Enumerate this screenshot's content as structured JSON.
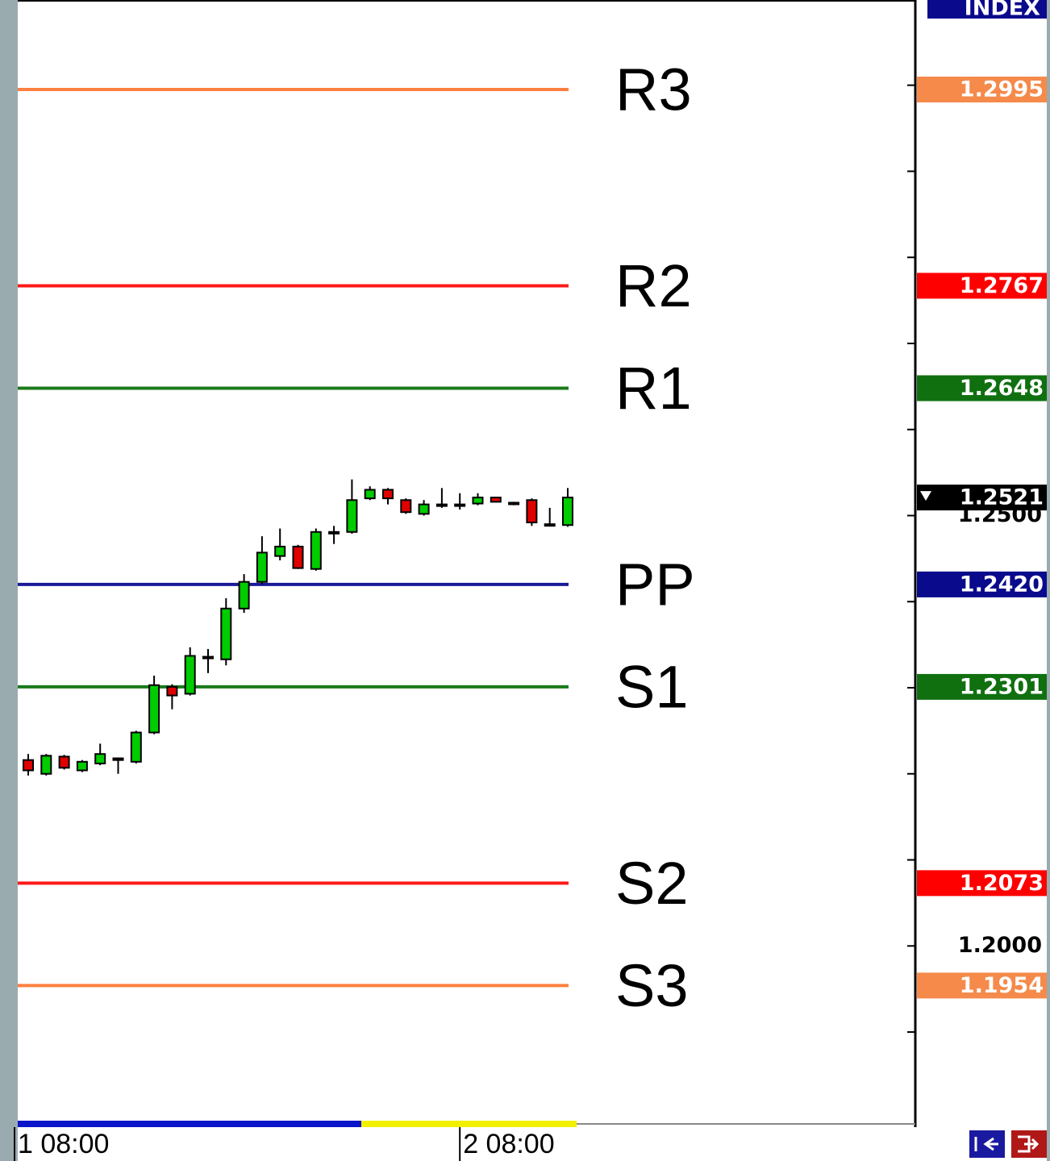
{
  "chart_data": {
    "type": "candlestick",
    "badge": "INDEX",
    "ylim": [
      1.1797,
      1.3099
    ],
    "yticks": [
      {
        "value": 1.2,
        "label": "1.2000"
      },
      {
        "value": 1.25,
        "label": "1.2500"
      }
    ],
    "yminor_ticks": [
      1.19,
      1.21,
      1.22,
      1.23,
      1.24,
      1.26,
      1.27,
      1.28,
      1.29,
      1.3
    ],
    "categories": [
      "1 08:00",
      null,
      null,
      null,
      null,
      null,
      null,
      null,
      null,
      null,
      null,
      null,
      null,
      null,
      null,
      null,
      null,
      null,
      null,
      null,
      null,
      null,
      null,
      null,
      "2 08:00",
      null,
      null,
      null,
      null,
      null,
      null
    ],
    "up_color": "#00cc00",
    "down_color": "#e00000",
    "open": [
      1.2216,
      1.22,
      1.222,
      1.2204,
      1.2212,
      1.2218,
      1.2214,
      1.2248,
      1.2301,
      1.2293,
      1.2335,
      1.2333,
      1.2392,
      1.2423,
      1.2453,
      1.2464,
      1.2438,
      1.248,
      1.2481,
      1.252,
      1.253,
      1.2518,
      1.2502,
      1.2512,
      1.2513,
      1.2514,
      1.2521,
      1.2514,
      1.2518,
      1.249,
      1.2489
    ],
    "high": [
      1.2223,
      1.2223,
      1.2222,
      1.2216,
      1.2235,
      1.2219,
      1.225,
      1.2314,
      1.2304,
      1.2347,
      1.2345,
      1.2404,
      1.2432,
      1.2476,
      1.2485,
      1.2466,
      1.2485,
      1.2488,
      1.2542,
      1.2534,
      1.2532,
      1.252,
      1.2518,
      1.2532,
      1.2526,
      1.2526,
      1.2522,
      1.2516,
      1.252,
      1.2509,
      1.2532
    ],
    "low": [
      1.2198,
      1.2198,
      1.2205,
      1.2202,
      1.221,
      1.22,
      1.2212,
      1.2246,
      1.2275,
      1.2291,
      1.2317,
      1.2326,
      1.2387,
      1.242,
      1.2448,
      1.2438,
      1.2436,
      1.2467,
      1.2479,
      1.2518,
      1.2513,
      1.2502,
      1.25,
      1.2509,
      1.2507,
      1.2512,
      1.2516,
      1.2512,
      1.2488,
      1.2488,
      1.2487
    ],
    "close": [
      1.2204,
      1.2221,
      1.2207,
      1.2214,
      1.2223,
      1.2216,
      1.2248,
      1.2303,
      1.2291,
      1.2337,
      1.2336,
      1.2392,
      1.2423,
      1.2457,
      1.2464,
      1.2439,
      1.2481,
      1.2481,
      1.2518,
      1.253,
      1.252,
      1.2504,
      1.2513,
      1.2513,
      1.2512,
      1.2521,
      1.2516,
      1.2515,
      1.2492,
      1.2489,
      1.2521
    ],
    "levels": [
      {
        "name": "R3",
        "value": 1.2995,
        "label": "1.2995",
        "color": "#ff7f3f",
        "box_color": "#f58a4b"
      },
      {
        "name": "R2",
        "value": 1.2767,
        "label": "1.2767",
        "color": "#ff1a1a",
        "box_color": "#ff0000"
      },
      {
        "name": "R1",
        "value": 1.2648,
        "label": "1.2648",
        "color": "#1a7a1a",
        "box_color": "#107010"
      },
      {
        "name": "PP",
        "value": 1.242,
        "label": "1.2420",
        "color": "#1a1a99",
        "box_color": "#0a0a8c"
      },
      {
        "name": "S1",
        "value": 1.2301,
        "label": "1.2301",
        "color": "#1a7a1a",
        "box_color": "#107010"
      },
      {
        "name": "S2",
        "value": 1.2073,
        "label": "1.2073",
        "color": "#ff1a1a",
        "box_color": "#ff0000"
      },
      {
        "name": "S3",
        "value": 1.1954,
        "label": "1.1954",
        "color": "#ff7f3f",
        "box_color": "#f58a4b"
      }
    ],
    "last_price": {
      "value": 1.2521,
      "label": "1.2521"
    }
  }
}
